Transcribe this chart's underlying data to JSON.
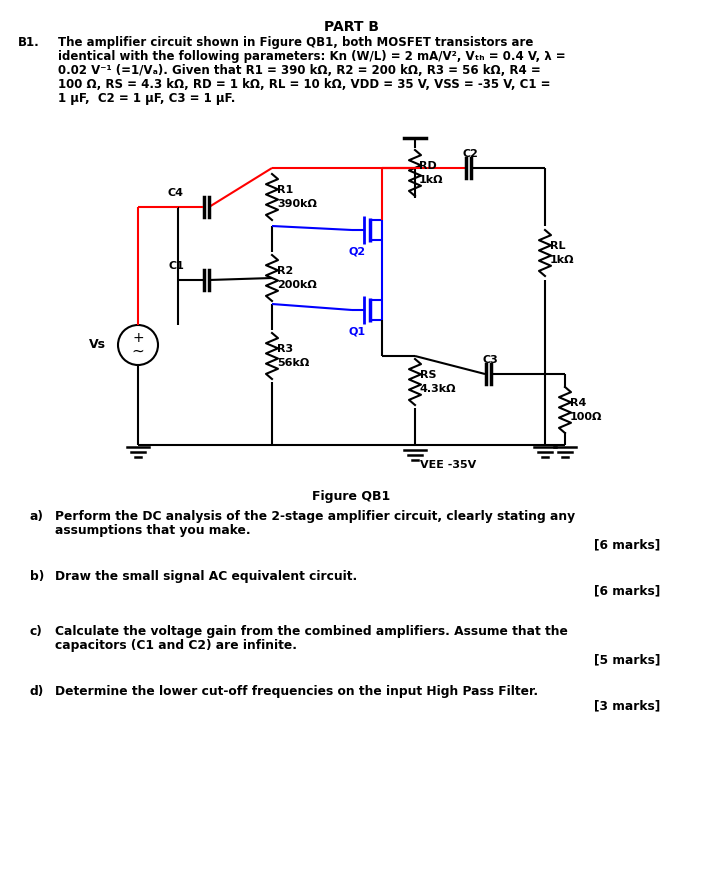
{
  "title": "PART B",
  "q_label": "B1.",
  "q_text1": "The amplifier circuit shown in Figure QB1, both MOSFET transistors are",
  "q_text2": "identical with the following parameters: Kn (W/L) = 2 mA/V², Vₜₕ = 0.4 V, λ =",
  "q_text3": "0.02 V⁻¹ (=1/Vₐ). Given that R1 = 390 kΩ, R2 = 200 kΩ, R3 = 56 kΩ, R4 =",
  "q_text4": "100 Ω, RS = 4.3 kΩ, RD = 1 kΩ, RL = 10 kΩ, VDD = 35 V, VSS = -35 V, C1 =",
  "q_text5": "1 μF,  C2 = 1 μF, C3 = 1 μF.",
  "fig_label": "Figure QB1",
  "qa_label": "a)",
  "qa_text1": "Perform the DC analysis of the 2-stage amplifier circuit, clearly stating any",
  "qa_text2": "assumptions that you make.",
  "qa_marks": "[6 marks]",
  "qb_label": "b)",
  "qb_text1": "Draw the small signal AC equivalent circuit.",
  "qb_marks": "[6 marks]",
  "qc_label": "c)",
  "qc_text1": "Calculate the voltage gain from the combined amplifiers. Assume that the",
  "qc_text2": "capacitors (C1 and C2) are infinite.",
  "qc_marks": "[5 marks]",
  "qd_label": "d)",
  "qd_text1": "Determine the lower cut-off frequencies on the input High Pass Filter.",
  "qd_marks": "[3 marks]"
}
